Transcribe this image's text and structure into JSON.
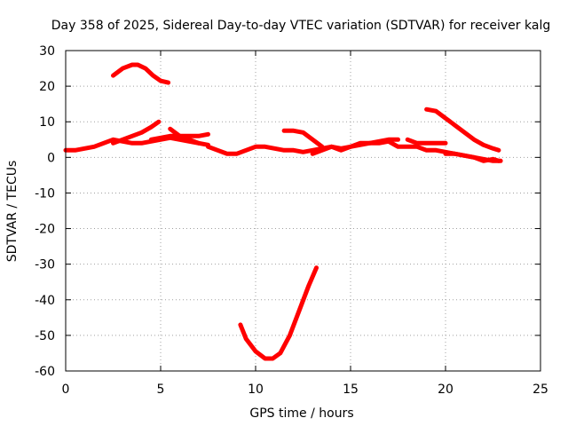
{
  "chart_data": {
    "type": "line",
    "title": "Day 358 of 2025, Sidereal Day-to-day VTEC variation (SDTVAR) for receiver kalg",
    "xlabel": "GPS time / hours",
    "ylabel": "SDTVAR / TECUs",
    "xlim": [
      0,
      25
    ],
    "ylim": [
      -60,
      30
    ],
    "xticks": [
      0,
      5,
      10,
      15,
      20,
      25
    ],
    "yticks": [
      -60,
      -50,
      -40,
      -30,
      -20,
      -10,
      0,
      10,
      20,
      30
    ],
    "grid": true,
    "series_color": "#ff0000",
    "series": [
      {
        "name": "upper-arc",
        "x": [
          2.5,
          3.0,
          3.5,
          3.8,
          4.2,
          4.6,
          5.0,
          5.4
        ],
        "y": [
          23,
          25,
          26,
          26,
          25,
          23,
          21.5,
          21
        ]
      },
      {
        "name": "baseline-1",
        "x": [
          0.0,
          0.5,
          1.0,
          1.5,
          2.0,
          2.5,
          3.0,
          3.5,
          4.0,
          4.5,
          5.0,
          5.5,
          6.0,
          6.5,
          7.0,
          7.5
        ],
        "y": [
          2,
          2,
          2.5,
          3,
          4,
          5,
          4.5,
          4,
          4,
          4.5,
          5,
          5.5,
          5,
          4.5,
          4,
          3.5
        ]
      },
      {
        "name": "baseline-2",
        "x": [
          7.5,
          8.0,
          8.5,
          9.0,
          9.5,
          10.0,
          10.5,
          11.0,
          11.5,
          12.0,
          12.5,
          13.0,
          13.5,
          14.0,
          14.5,
          15.0,
          15.5,
          16.0,
          16.5,
          17.0,
          17.5,
          18.0,
          18.5,
          19.0,
          19.5,
          20.0,
          20.5,
          21.0,
          21.5,
          22.0,
          22.5,
          22.8
        ],
        "y": [
          3,
          2,
          1,
          1,
          2,
          3,
          3,
          2.5,
          2,
          2,
          1.5,
          2,
          2.5,
          3,
          2,
          3,
          3.5,
          4,
          4,
          4.5,
          3,
          3,
          3,
          2,
          2,
          1.5,
          1,
          0.5,
          0,
          -1,
          -0.5,
          -1
        ]
      },
      {
        "name": "rising-seg-a",
        "x": [
          2.5,
          3.0,
          3.5,
          4.0,
          4.5,
          4.9
        ],
        "y": [
          4,
          5,
          6,
          7,
          8.5,
          10
        ]
      },
      {
        "name": "upper-mid-seg",
        "x": [
          4.5,
          5.0,
          5.5,
          6.0,
          6.5,
          7.0,
          7.5
        ],
        "y": [
          5,
          5.5,
          6,
          6,
          6,
          6,
          6.5
        ]
      },
      {
        "name": "hump-seg",
        "x": [
          5.5,
          6.0,
          6.5,
          7.0
        ],
        "y": [
          8,
          6,
          5,
          4
        ]
      },
      {
        "name": "mid-seg",
        "x": [
          11.5,
          12.0,
          12.5,
          13.0,
          13.5
        ],
        "y": [
          7.5,
          7.5,
          7,
          5,
          3
        ]
      },
      {
        "name": "noisy-seg",
        "x": [
          13.0,
          13.5,
          14.0,
          14.5,
          15.0,
          15.5,
          16.0,
          16.5,
          17.0,
          17.5
        ],
        "y": [
          1,
          2,
          3,
          2.5,
          3,
          4,
          4,
          4.5,
          5,
          5
        ]
      },
      {
        "name": "mid-right-seg",
        "x": [
          18.0,
          18.5,
          19.0,
          19.5,
          20.0
        ],
        "y": [
          5,
          4,
          4,
          4,
          4
        ]
      },
      {
        "name": "descending-seg",
        "x": [
          19.0,
          19.5,
          20.0,
          20.5,
          21.0,
          21.5,
          22.0,
          22.5,
          22.8
        ],
        "y": [
          13.5,
          13,
          11,
          9,
          7,
          5,
          3.5,
          2.5,
          2
        ]
      },
      {
        "name": "lower-right-seg",
        "x": [
          20.0,
          20.5,
          21.0,
          21.5,
          22.0,
          22.5,
          22.9
        ],
        "y": [
          1,
          1,
          0.5,
          0,
          -0.5,
          -1,
          -1
        ]
      },
      {
        "name": "deep-dip",
        "x": [
          9.2,
          9.5,
          10.0,
          10.5,
          10.9,
          11.3,
          11.8,
          12.3,
          12.8,
          13.2
        ],
        "y": [
          -47,
          -51,
          -54.5,
          -56.5,
          -56.5,
          -55,
          -50,
          -43,
          -36,
          -31
        ]
      }
    ]
  }
}
